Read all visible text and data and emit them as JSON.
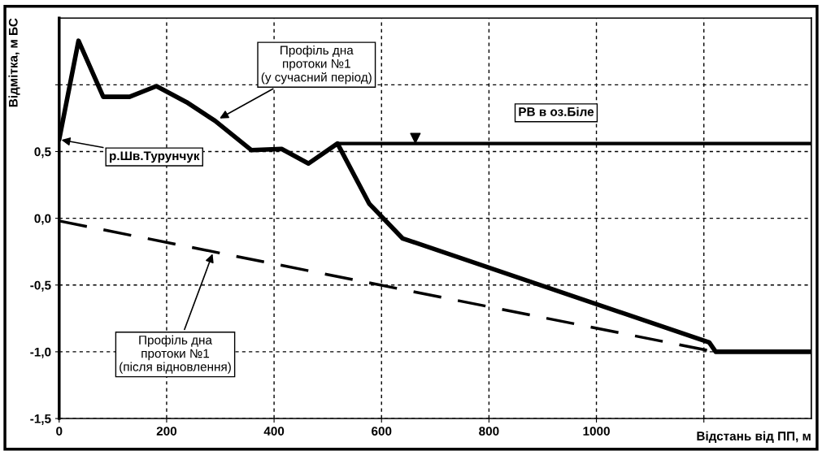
{
  "chart_data": {
    "type": "line",
    "xlabel": "Відстань від ПП, м",
    "ylabel": "Відмітка, м БС",
    "xlim": [
      0,
      1400
    ],
    "ylim": [
      -1.5,
      1.5
    ],
    "xticks": [
      0,
      200,
      400,
      600,
      800,
      1000,
      {
        "value": 1200,
        "label": null
      }
    ],
    "yticks": [
      {
        "value": -1.5,
        "label": "-1,5"
      },
      {
        "value": -1.0,
        "label": "-1,0"
      },
      {
        "value": -0.5,
        "label": "-0,5"
      },
      {
        "value": 0.0,
        "label": "0,0"
      },
      {
        "value": 0.5,
        "label": "0,5"
      },
      {
        "value": 1.0,
        "label": null
      }
    ],
    "grid": true,
    "legend": false,
    "series": [
      {
        "type": "line",
        "color": "#000000",
        "line_style": "solid",
        "x": [
          0,
          36,
          82,
          131,
          181,
          237,
          290,
          358,
          414,
          464,
          518,
          577,
          639,
          1210,
          1222,
          1400
        ],
        "values": [
          0.59,
          1.33,
          0.91,
          0.91,
          0.99,
          0.87,
          0.73,
          0.51,
          0.52,
          0.41,
          0.56,
          0.11,
          -0.15,
          -0.93,
          -1.0,
          -1.0
        ]
      },
      {
        "type": "line",
        "color": "#000000",
        "line_style": "dashed",
        "x": [
          0,
          1220
        ],
        "values": [
          -0.02,
          -1.0
        ]
      },
      {
        "type": "line",
        "color": "#000000",
        "line_style": "solid",
        "x": [
          518,
          1400
        ],
        "values": [
          0.56,
          0.56
        ]
      },
      {
        "type": "scatter",
        "color": "#000000",
        "marker": "triangle",
        "x": [
          663
        ],
        "values": [
          0.6
        ]
      }
    ],
    "annotations": [
      {
        "text": "Профіль дна\nпротоки №1\n(у сучасний період)",
        "x": 295,
        "y": 0.74
      },
      {
        "text": "р.Шв.Турунчук",
        "x": 0,
        "y": 0.59
      },
      {
        "text": "Профіль дна\nпротоки №1\n(після відновлення)",
        "x": 287,
        "y": -0.25
      },
      {
        "text": "РВ в оз.Біле",
        "x": 925,
        "y": 0.56
      }
    ]
  }
}
